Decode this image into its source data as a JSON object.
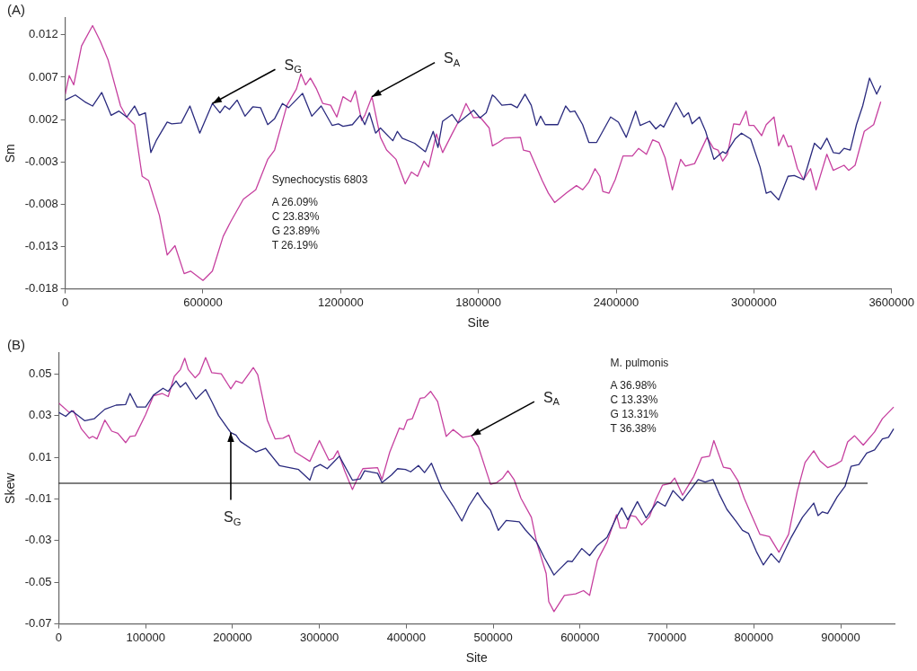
{
  "chart_data": [
    {
      "type": "line",
      "title": "(A)",
      "xlabel": "Site",
      "ylabel": "Sm",
      "xlim": [
        0,
        3600000
      ],
      "xticks": [
        0,
        600000,
        1200000,
        1800000,
        2400000,
        3000000,
        3600000
      ],
      "ylim": [
        -0.018,
        0.014
      ],
      "yticks": [
        -0.018,
        -0.013,
        -0.008,
        -0.003,
        0.002,
        0.007,
        0.012
      ],
      "grid": false,
      "legend": false,
      "marker": "none",
      "line_style": "solid",
      "annotations": [
        "Synechocystis 6803",
        "A 26.09%",
        "C 23.83%",
        "G 23.89%",
        "T 26.19%",
        {
          "text": "S$_{G}$",
          "x": 641000,
          "y": 0.0039
        },
        {
          "text": "S$_{A}$",
          "x": 1336000,
          "y": 0.0047
        }
      ],
      "series": [
        {
          "color": "#2a2a7e",
          "x": [
            0,
            44000,
            85000,
            119000,
            159000,
            200000,
            234000,
            268000,
            302000,
            322000,
            349000,
            373000,
            396000,
            444000,
            464000,
            505000,
            543000,
            586000,
            641000,
            674000,
            695000,
            715000,
            749000,
            783000,
            817000,
            851000,
            882000,
            912000,
            946000,
            973000,
            1034000,
            1074000,
            1115000,
            1163000,
            1190000,
            1210000,
            1251000,
            1285000,
            1305000,
            1325000,
            1352000,
            1373000,
            1427000,
            1447000,
            1468000,
            1522000,
            1569000,
            1603000,
            1624000,
            1644000,
            1685000,
            1712000,
            1779000,
            1807000,
            1834000,
            1861000,
            1874000,
            1902000,
            1942000,
            1969000,
            2003000,
            2030000,
            2053000,
            2071000,
            2091000,
            2146000,
            2180000,
            2200000,
            2220000,
            2254000,
            2281000,
            2315000,
            2376000,
            2410000,
            2444000,
            2485000,
            2505000,
            2546000,
            2573000,
            2593000,
            2607000,
            2661000,
            2695000,
            2715000,
            2731000,
            2763000,
            2790000,
            2826000,
            2864000,
            2878000,
            2918000,
            2946000,
            2986000,
            3027000,
            3054000,
            3074000,
            3108000,
            3149000,
            3176000,
            3217000,
            3264000,
            3291000,
            3318000,
            3346000,
            3373000,
            3393000,
            3420000,
            3447000,
            3474000,
            3504000,
            3535000,
            3553000
          ],
          "values": [
            0.0043,
            0.0049,
            0.0041,
            0.0036,
            0.0052,
            0.0025,
            0.003,
            0.0023,
            0.0036,
            0.0025,
            0.0028,
            -0.0019,
            -0.0005,
            0.0017,
            0.0015,
            0.0016,
            0.0036,
            0.0004,
            0.0039,
            0.0028,
            0.0036,
            0.0032,
            0.0043,
            0.0024,
            0.0035,
            0.0034,
            0.0014,
            0.0021,
            0.0039,
            0.0034,
            0.0051,
            0.0024,
            0.0036,
            0.0013,
            0.0015,
            0.0012,
            0.0014,
            0.0025,
            0.0014,
            0.0028,
            0.0004,
            0.001,
            -0.0005,
            0.0006,
            -0.0002,
            -0.0008,
            -0.0018,
            0.0006,
            -0.0013,
            0.0018,
            0.0026,
            0.0016,
            0.0031,
            0.0022,
            0.0028,
            0.0049,
            0.0046,
            0.0037,
            0.0038,
            0.0034,
            0.005,
            0.0037,
            0.0013,
            0.0024,
            0.0014,
            0.0014,
            0.0036,
            0.0029,
            0.003,
            0.0014,
            -0.0007,
            -0.0007,
            0.0023,
            0.0017,
            -0.0001,
            0.003,
            0.0013,
            0.0018,
            0.0009,
            0.0014,
            0.0011,
            0.004,
            0.0023,
            0.0028,
            0.0015,
            0.0023,
            0.0006,
            -0.0027,
            -0.0018,
            -0.002,
            -0.0003,
            0.0004,
            -0.0003,
            -0.0036,
            -0.0067,
            -0.0065,
            -0.0075,
            -0.0047,
            -0.0046,
            -0.0051,
            -0.0008,
            -0.0015,
            -0.0002,
            -0.0019,
            -0.002,
            -0.0014,
            -0.0016,
            0.0014,
            0.0036,
            0.0069,
            0.005,
            0.006
          ]
        },
        {
          "color": "#c6409f",
          "x": [
            0,
            17000,
            37000,
            71000,
            119000,
            152000,
            186000,
            241000,
            268000,
            302000,
            335000,
            363000,
            410000,
            444000,
            478000,
            518000,
            546000,
            600000,
            641000,
            688000,
            722000,
            776000,
            830000,
            882000,
            912000,
            966000,
            1007000,
            1027000,
            1047000,
            1068000,
            1095000,
            1122000,
            1156000,
            1183000,
            1210000,
            1244000,
            1264000,
            1291000,
            1305000,
            1336000,
            1373000,
            1400000,
            1441000,
            1481000,
            1508000,
            1535000,
            1563000,
            1583000,
            1617000,
            1644000,
            1685000,
            1712000,
            1746000,
            1779000,
            1807000,
            1847000,
            1861000,
            1888000,
            1915000,
            1983000,
            1996000,
            2024000,
            2078000,
            2105000,
            2132000,
            2186000,
            2227000,
            2254000,
            2281000,
            2308000,
            2329000,
            2342000,
            2369000,
            2396000,
            2430000,
            2471000,
            2498000,
            2532000,
            2559000,
            2586000,
            2613000,
            2645000,
            2681000,
            2702000,
            2742000,
            2796000,
            2824000,
            2844000,
            2864000,
            2885000,
            2912000,
            2939000,
            2966000,
            2979000,
            3000000,
            3034000,
            3054000,
            3088000,
            3108000,
            3129000,
            3149000,
            3163000,
            3190000,
            3217000,
            3247000,
            3271000,
            3318000,
            3346000,
            3393000,
            3413000,
            3441000,
            3481000,
            3522000,
            3553000
          ],
          "values": [
            0.005,
            0.0072,
            0.0061,
            0.0107,
            0.0131,
            0.0113,
            0.0091,
            0.0036,
            0.0023,
            0.0014,
            -0.0047,
            -0.0052,
            -0.0093,
            -0.014,
            -0.0129,
            -0.0162,
            -0.0159,
            -0.017,
            -0.0159,
            -0.0118,
            -0.01,
            -0.0074,
            -0.0063,
            -0.0027,
            -0.0016,
            0.0037,
            0.0056,
            0.0074,
            0.0061,
            0.0069,
            0.0056,
            0.0039,
            0.0037,
            0.0023,
            0.0047,
            0.0041,
            0.0054,
            0.0019,
            0.0025,
            0.0047,
            -0.0001,
            -0.0016,
            -0.0027,
            -0.0056,
            -0.0042,
            -0.0047,
            -0.0029,
            -0.0036,
            0.0003,
            -0.0019,
            0.0003,
            0.0017,
            0.0039,
            0.0022,
            0.0023,
            0.001,
            -0.0011,
            -0.0007,
            -0.0002,
            -0.0001,
            -0.0016,
            -0.0018,
            -0.0052,
            -0.0067,
            -0.0078,
            -0.0066,
            -0.0058,
            -0.0063,
            -0.0054,
            -0.0038,
            -0.0047,
            -0.0065,
            -0.0067,
            -0.0051,
            -0.0023,
            -0.0023,
            -0.0014,
            -0.0021,
            -0.0004,
            -0.0007,
            -0.0025,
            -0.0063,
            -0.0027,
            -0.0035,
            -0.0032,
            -0.0001,
            -0.0014,
            -0.0016,
            -0.0029,
            -0.0021,
            0.0015,
            0.0014,
            0.003,
            0.0013,
            0.0013,
            0.0001,
            0.0014,
            0.0023,
            -0.0011,
            0.0002,
            -0.0012,
            -0.0011,
            -0.0038,
            -0.0051,
            -0.0038,
            -0.0063,
            -0.0021,
            -0.004,
            -0.0034,
            -0.004,
            -0.0034,
            0.0006,
            0.0014,
            0.0041
          ]
        }
      ]
    },
    {
      "type": "line",
      "title": "(B)",
      "xlabel": "Site",
      "ylabel": "Skew",
      "xlim": [
        0,
        962000
      ],
      "xticks": [
        0,
        100000,
        200000,
        300000,
        400000,
        500000,
        600000,
        700000,
        800000,
        900000
      ],
      "ylim": [
        -0.07,
        0.06
      ],
      "yticks": [
        -0.07,
        -0.05,
        -0.03,
        -0.01,
        0.01,
        0.03,
        0.05
      ],
      "grid": false,
      "legend": false,
      "marker": "none",
      "line_style": "solid",
      "ref_lines": [
        {
          "axis": "y",
          "value": -0.0025,
          "color": "#000000"
        }
      ],
      "annotations": [
        "M. pulmonis",
        "A 36.98%",
        "C 13.33%",
        "G 13.31%",
        "T 36.38%",
        {
          "text": "S$_{A}$",
          "x": 475000,
          "y": 0.0203
        },
        {
          "text": "S$_{G}$",
          "x": 198000,
          "y": 0.0218
        }
      ],
      "series": [
        {
          "color": "#2a2a7e",
          "x": [
            0,
            8000,
            15000,
            30000,
            41000,
            53000,
            66000,
            77000,
            82000,
            90000,
            100000,
            109000,
            120000,
            126000,
            135000,
            140000,
            146000,
            158000,
            169000,
            176000,
            184000,
            198000,
            204000,
            209000,
            227000,
            238000,
            254000,
            276000,
            289000,
            294000,
            301000,
            309000,
            323000,
            338000,
            347000,
            352000,
            367000,
            372000,
            383000,
            390000,
            399000,
            405000,
            414000,
            421000,
            429000,
            441000,
            454000,
            464000,
            472000,
            482000,
            490000,
            497000,
            506000,
            515000,
            530000,
            537000,
            550000,
            559000,
            570000,
            577000,
            586000,
            591000,
            602000,
            611000,
            620000,
            631000,
            642000,
            648000,
            655000,
            666000,
            676000,
            689000,
            698000,
            707000,
            718000,
            736000,
            744000,
            753000,
            760000,
            769000,
            780000,
            787000,
            794000,
            803000,
            811000,
            820000,
            829000,
            843000,
            856000,
            869000,
            874000,
            879000,
            885000,
            896000,
            905000,
            912000,
            921000,
            930000,
            939000,
            948000,
            955000,
            961000
          ],
          "values": [
            0.0315,
            0.0296,
            0.0323,
            0.0275,
            0.0285,
            0.033,
            0.035,
            0.0353,
            0.0406,
            0.0341,
            0.0341,
            0.0398,
            0.0431,
            0.0416,
            0.0466,
            0.0436,
            0.0458,
            0.0379,
            0.0425,
            0.0368,
            0.03,
            0.0218,
            0.0206,
            0.0176,
            0.0125,
            0.0143,
            0.006,
            0.0041,
            -0.001,
            0.005,
            0.0065,
            0.0045,
            0.0105,
            -0.001,
            -0.0004,
            0.0035,
            0.0023,
            -0.0022,
            0.0015,
            0.0045,
            0.0041,
            0.003,
            0.006,
            0.0026,
            0.0071,
            -0.0052,
            -0.0135,
            -0.0206,
            -0.0135,
            -0.007,
            -0.012,
            -0.0155,
            -0.0251,
            -0.0203,
            -0.021,
            -0.0248,
            -0.0308,
            -0.0383,
            -0.0465,
            -0.0435,
            -0.0398,
            -0.0401,
            -0.0338,
            -0.0372,
            -0.0323,
            -0.0285,
            -0.0188,
            -0.0143,
            -0.02,
            -0.0113,
            -0.0191,
            -0.0113,
            -0.0135,
            -0.006,
            -0.0108,
            -0.0007,
            -0.0019,
            -0.0007,
            -0.0075,
            -0.015,
            -0.021,
            -0.0251,
            -0.0266,
            -0.0353,
            -0.0417,
            -0.0363,
            -0.0405,
            -0.0285,
            -0.0188,
            -0.012,
            -0.018,
            -0.0162,
            -0.017,
            -0.009,
            -0.004,
            0.0056,
            0.0065,
            0.012,
            0.0135,
            0.0188,
            0.0195,
            0.0236
          ]
        },
        {
          "color": "#c6409f",
          "x": [
            0,
            12000,
            17000,
            26000,
            35000,
            39000,
            44000,
            53000,
            61000,
            68000,
            77000,
            82000,
            88000,
            100000,
            109000,
            119000,
            126000,
            133000,
            140000,
            145000,
            149000,
            157000,
            162000,
            169000,
            176000,
            187000,
            198000,
            204000,
            211000,
            224000,
            229000,
            240000,
            249000,
            258000,
            265000,
            272000,
            289000,
            300000,
            311000,
            316000,
            321000,
            329000,
            338000,
            343000,
            350000,
            367000,
            372000,
            381000,
            392000,
            397000,
            401000,
            407000,
            416000,
            421000,
            428000,
            436000,
            446000,
            454000,
            465000,
            475000,
            483000,
            497000,
            504000,
            511000,
            517000,
            524000,
            532000,
            544000,
            550000,
            561000,
            564000,
            570000,
            582000,
            595000,
            604000,
            611000,
            620000,
            631000,
            642000,
            646000,
            653000,
            658000,
            664000,
            671000,
            680000,
            687000,
            695000,
            704000,
            709000,
            718000,
            731000,
            740000,
            749000,
            754000,
            765000,
            773000,
            782000,
            789000,
            796000,
            807000,
            818000,
            829000,
            840000,
            850000,
            859000,
            869000,
            876000,
            885000,
            894000,
            901000,
            908000,
            916000,
            926000,
            939000,
            948000,
            961000
          ],
          "values": [
            0.036,
            0.0315,
            0.0323,
            0.0236,
            0.0191,
            0.02,
            0.0188,
            0.0278,
            0.0225,
            0.0215,
            0.017,
            0.02,
            0.0203,
            0.0305,
            0.0395,
            0.0406,
            0.0391,
            0.0488,
            0.0521,
            0.0575,
            0.0521,
            0.0481,
            0.0503,
            0.0578,
            0.0506,
            0.05,
            0.0428,
            0.0466,
            0.0455,
            0.053,
            0.0496,
            0.0278,
            0.0188,
            0.0191,
            0.0206,
            0.0125,
            0.008,
            0.018,
            0.0086,
            0.0095,
            0.0131,
            0.0035,
            -0.0055,
            -0.001,
            0.0045,
            0.005,
            -0.0007,
            0.0125,
            0.024,
            0.0233,
            0.0278,
            0.0285,
            0.0383,
            0.0386,
            0.0416,
            0.0368,
            0.02,
            0.0233,
            0.0195,
            0.0203,
            0.015,
            -0.003,
            -0.0022,
            0,
            0.0035,
            -0.0007,
            -0.0097,
            -0.0188,
            -0.0308,
            -0.0458,
            -0.0593,
            -0.0641,
            -0.0563,
            -0.0556,
            -0.054,
            -0.0563,
            -0.0395,
            -0.0308,
            -0.0176,
            -0.024,
            -0.024,
            -0.018,
            -0.0185,
            -0.0225,
            -0.0185,
            -0.0105,
            -0.0034,
            -0.0025,
            0,
            -0.0082,
            0.0008,
            0.0098,
            0.0105,
            0.018,
            0.0052,
            0.0045,
            -0.0015,
            -0.0097,
            -0.0165,
            -0.027,
            -0.0281,
            -0.0356,
            -0.027,
            -0.0064,
            0.0075,
            0.0131,
            0.0083,
            0.005,
            0.0065,
            0.0083,
            0.0173,
            0.0203,
            0.0158,
            0.0221,
            0.0285,
            0.0341
          ]
        }
      ]
    }
  ]
}
